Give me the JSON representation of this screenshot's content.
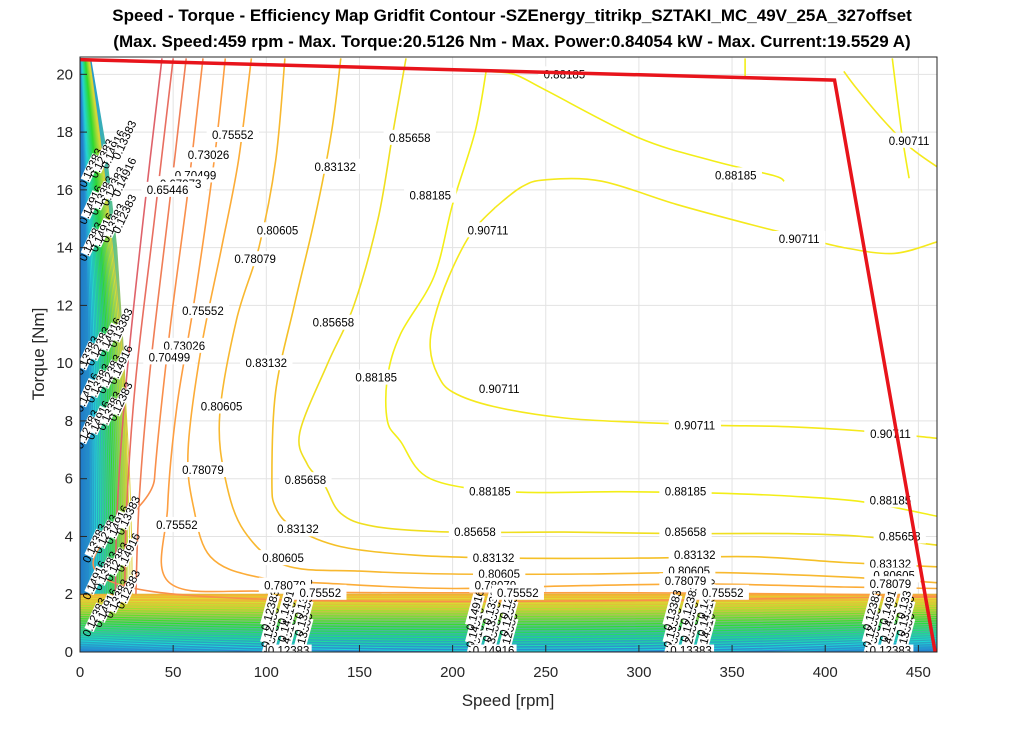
{
  "chart_data": {
    "type": "contour",
    "title": "Speed - Torque - Efficiency Map Gridfit Contour -SZEnergy_titrikp_SZTAKI_MC_49V_25A_327offset",
    "subtitle": "(Max. Speed:459 rpm - Max. Torque:20.5126 Nm - Max. Power:0.84054 kW - Max. Current:19.5529 A)",
    "xlabel": "Speed [rpm]",
    "ylabel": "Torque [Nm]",
    "xlim": [
      0,
      460
    ],
    "ylim": [
      0,
      20.6
    ],
    "xticks": [
      0,
      50,
      100,
      150,
      200,
      250,
      300,
      350,
      400,
      450
    ],
    "yticks": [
      0,
      2,
      4,
      6,
      8,
      10,
      12,
      14,
      16,
      18,
      20
    ],
    "grid": true,
    "max_torque_envelope": {
      "color": "#e8141b",
      "points": [
        [
          0,
          20.51
        ],
        [
          405,
          19.8
        ],
        [
          459,
          0
        ]
      ]
    },
    "contours": [
      {
        "level": "0.90711",
        "color": "#f5e91c",
        "lines": [
          [
            [
              223,
              15.4
            ],
            [
              237,
              16.1
            ],
            [
              250,
              16.35
            ],
            [
              280,
              16.3
            ],
            [
              320,
              15.5
            ],
            [
              360,
              14.8
            ],
            [
              385,
              14.4
            ],
            [
              410,
              14.0
            ],
            [
              437,
              13.8
            ],
            [
              460,
              14.2
            ]
          ],
          [
            [
              223,
              15.4
            ],
            [
              210,
              14.5
            ],
            [
              198,
              13.0
            ],
            [
              190,
              11.5
            ],
            [
              188,
              10.5
            ],
            [
              192,
              9.6
            ],
            [
              200,
              9.0
            ],
            [
              222,
              8.5
            ],
            [
              260,
              8.1
            ],
            [
              300,
              7.95
            ],
            [
              340,
              7.85
            ],
            [
              380,
              7.8
            ],
            [
              420,
              7.65
            ],
            [
              460,
              7.4
            ]
          ],
          [
            [
              410,
              20.1
            ],
            [
              417,
              19.5
            ],
            [
              430,
              18.5
            ],
            [
              445,
              17.5
            ],
            [
              460,
              16.8
            ]
          ]
        ],
        "labels": [
          [
            219,
            14.6
          ],
          [
            386,
            14.3
          ],
          [
            225,
            9.1
          ],
          [
            330,
            7.85
          ],
          [
            435,
            7.55
          ],
          [
            445,
            17.7
          ]
        ]
      },
      {
        "level": "0.88185",
        "color": "#f3ee17",
        "lines": [
          [
            [
              218,
              20.1
            ],
            [
              233,
              20.0
            ],
            [
              250,
              19.45
            ],
            [
              300,
              17.8
            ],
            [
              340,
              17.0
            ],
            [
              372,
              16.5
            ],
            [
              378,
              16.3
            ]
          ],
          [
            [
              218,
              20.1
            ],
            [
              212,
              18.0
            ],
            [
              200,
              15.5
            ],
            [
              190,
              13.0
            ],
            [
              172,
              11.0
            ],
            [
              165,
              9.5
            ],
            [
              165,
              8.0
            ],
            [
              172,
              7.3
            ],
            [
              188,
              6.0
            ],
            [
              230,
              5.55
            ],
            [
              290,
              5.55
            ],
            [
              340,
              5.5
            ],
            [
              380,
              5.4
            ],
            [
              420,
              5.2
            ],
            [
              460,
              4.7
            ]
          ],
          [
            [
              357,
              20.55
            ],
            [
              357,
              19.9
            ]
          ],
          [
            [
              436,
              20.55
            ],
            [
              441,
              18.0
            ],
            [
              445,
              16.4
            ]
          ]
        ],
        "labels": [
          [
            260,
            20.0
          ],
          [
            352,
            16.5
          ],
          [
            188,
            15.8
          ],
          [
            159,
            9.5
          ],
          [
            220,
            5.55
          ],
          [
            325,
            5.55
          ],
          [
            435,
            5.25
          ]
        ]
      },
      {
        "level": "0.85658",
        "color": "#f0df1f",
        "lines": [
          [
            [
              175,
              20.55
            ],
            [
              168,
              18.0
            ],
            [
              160,
              15.0
            ],
            [
              147,
              12.0
            ],
            [
              133,
              10.0
            ],
            [
              118,
              7.6
            ],
            [
              122,
              6.5
            ],
            [
              131,
              5.8
            ],
            [
              140,
              4.8
            ],
            [
              158,
              4.35
            ],
            [
              200,
              4.15
            ],
            [
              260,
              4.15
            ],
            [
              320,
              4.1
            ],
            [
              380,
              4.1
            ],
            [
              420,
              4.0
            ],
            [
              460,
              3.7
            ]
          ]
        ],
        "labels": [
          [
            177,
            17.8
          ],
          [
            136,
            11.4
          ],
          [
            121,
            5.95
          ],
          [
            212,
            4.15
          ],
          [
            325,
            4.15
          ],
          [
            440,
            4.0
          ]
        ]
      },
      {
        "level": "0.83132",
        "color": "#f5c027",
        "lines": [
          [
            [
              140,
              20.55
            ],
            [
              135,
              18.0
            ],
            [
              126,
              15.0
            ],
            [
              115,
              12.0
            ],
            [
              105,
              9.0
            ],
            [
              103,
              6.0
            ],
            [
              105,
              5.0
            ],
            [
              115,
              4.3
            ],
            [
              140,
              3.65
            ],
            [
              180,
              3.35
            ],
            [
              230,
              3.25
            ],
            [
              300,
              3.25
            ],
            [
              360,
              3.3
            ],
            [
              410,
              3.1
            ],
            [
              460,
              2.95
            ]
          ]
        ],
        "labels": [
          [
            137,
            16.8
          ],
          [
            100,
            10.0
          ],
          [
            117,
            4.25
          ],
          [
            222,
            3.25
          ],
          [
            330,
            3.35
          ],
          [
            435,
            3.05
          ]
        ]
      },
      {
        "level": "0.80605",
        "color": "#f8b82f",
        "lines": [
          [
            [
              110,
              20.55
            ],
            [
              105,
              17.0
            ],
            [
              96,
              14.0
            ],
            [
              84,
              11.5
            ],
            [
              75,
              8.2
            ],
            [
              78,
              6.0
            ],
            [
              88,
              4.2
            ],
            [
              110,
              3.0
            ],
            [
              150,
              2.8
            ],
            [
              200,
              2.7
            ],
            [
              270,
              2.7
            ],
            [
              340,
              2.75
            ],
            [
              410,
              2.6
            ],
            [
              460,
              2.4
            ]
          ]
        ],
        "labels": [
          [
            106,
            14.6
          ],
          [
            76,
            8.5
          ],
          [
            109,
            3.25
          ],
          [
            225,
            2.7
          ],
          [
            327,
            2.8
          ],
          [
            437,
            2.65
          ]
        ]
      },
      {
        "level": "0.78079",
        "color": "#fcac37",
        "lines": [
          [
            [
              92,
              20.55
            ],
            [
              85,
              17.0
            ],
            [
              76,
              14.0
            ],
            [
              65,
              10.5
            ],
            [
              58,
              7.0
            ],
            [
              61,
              5.0
            ],
            [
              70,
              3.3
            ],
            [
              95,
              2.6
            ],
            [
              140,
              2.35
            ],
            [
              200,
              2.2
            ],
            [
              270,
              2.3
            ],
            [
              340,
              2.35
            ],
            [
              410,
              2.25
            ],
            [
              460,
              2.2
            ]
          ]
        ],
        "labels": [
          [
            94,
            13.6
          ],
          [
            66,
            6.3
          ],
          [
            110,
            2.3
          ],
          [
            223,
            2.3
          ],
          [
            325,
            2.45
          ],
          [
            435,
            2.35
          ]
        ]
      },
      {
        "level": "0.75552",
        "color": "#fd9e41",
        "lines": [
          [
            [
              78,
              20.55
            ],
            [
              72,
              17.0
            ],
            [
              61,
              12.0
            ],
            [
              52,
              8.5
            ],
            [
              47,
              5.0
            ],
            [
              48,
              2.4
            ],
            [
              100,
              2.1
            ],
            [
              200,
              2.05
            ],
            [
              300,
              2.05
            ],
            [
              400,
              2.0
            ],
            [
              460,
              1.95
            ]
          ]
        ],
        "labels": [
          [
            82,
            17.9
          ],
          [
            66,
            11.8
          ],
          [
            52,
            4.4
          ],
          [
            129,
            2.05
          ],
          [
            235,
            2.05
          ],
          [
            345,
            2.05
          ]
        ]
      },
      {
        "level": "0.73026",
        "color": "#f98f4b",
        "lines": [
          [
            [
              66,
              20.55
            ],
            [
              58,
              16.0
            ],
            [
              48,
              11.0
            ],
            [
              40,
              6.0
            ],
            [
              38,
              2.1
            ],
            [
              460,
              1.9
            ]
          ]
        ],
        "labels": [
          [
            69,
            17.2
          ],
          [
            56,
            10.6
          ]
        ]
      },
      {
        "level": "0.70499",
        "color": "#f07e56",
        "lines": [
          [
            [
              57,
              20.55
            ],
            [
              48,
              15.5
            ],
            [
              38,
              10.0
            ],
            [
              32,
              5.5
            ],
            [
              30,
              2.0
            ]
          ]
        ],
        "labels": [
          [
            62,
            16.5
          ],
          [
            48,
            10.2
          ]
        ]
      },
      {
        "level": "0.67973",
        "color": "#e86e60",
        "lines": [
          [
            [
              50,
              20.55
            ],
            [
              40,
              15.0
            ],
            [
              30,
              9.5
            ],
            [
              25,
              5.0
            ],
            [
              24,
              1.9
            ]
          ]
        ],
        "labels": [
          [
            54,
            16.2
          ]
        ]
      },
      {
        "level": "0.65446",
        "color": "#df626a",
        "lines": [
          [
            [
              44,
              20.55
            ],
            [
              34,
              15.0
            ],
            [
              25,
              9.5
            ],
            [
              20,
              5.0
            ],
            [
              19,
              1.8
            ]
          ]
        ],
        "labels": [
          [
            47,
            16.0
          ]
        ]
      }
    ],
    "low_torque_band": {
      "top_torque": 2.0,
      "color_top": "#f9b233",
      "color_bottom": "#2a9fd6"
    },
    "low_level_labels": [
      "0.12383",
      "0.14916",
      "0.13383"
    ]
  }
}
